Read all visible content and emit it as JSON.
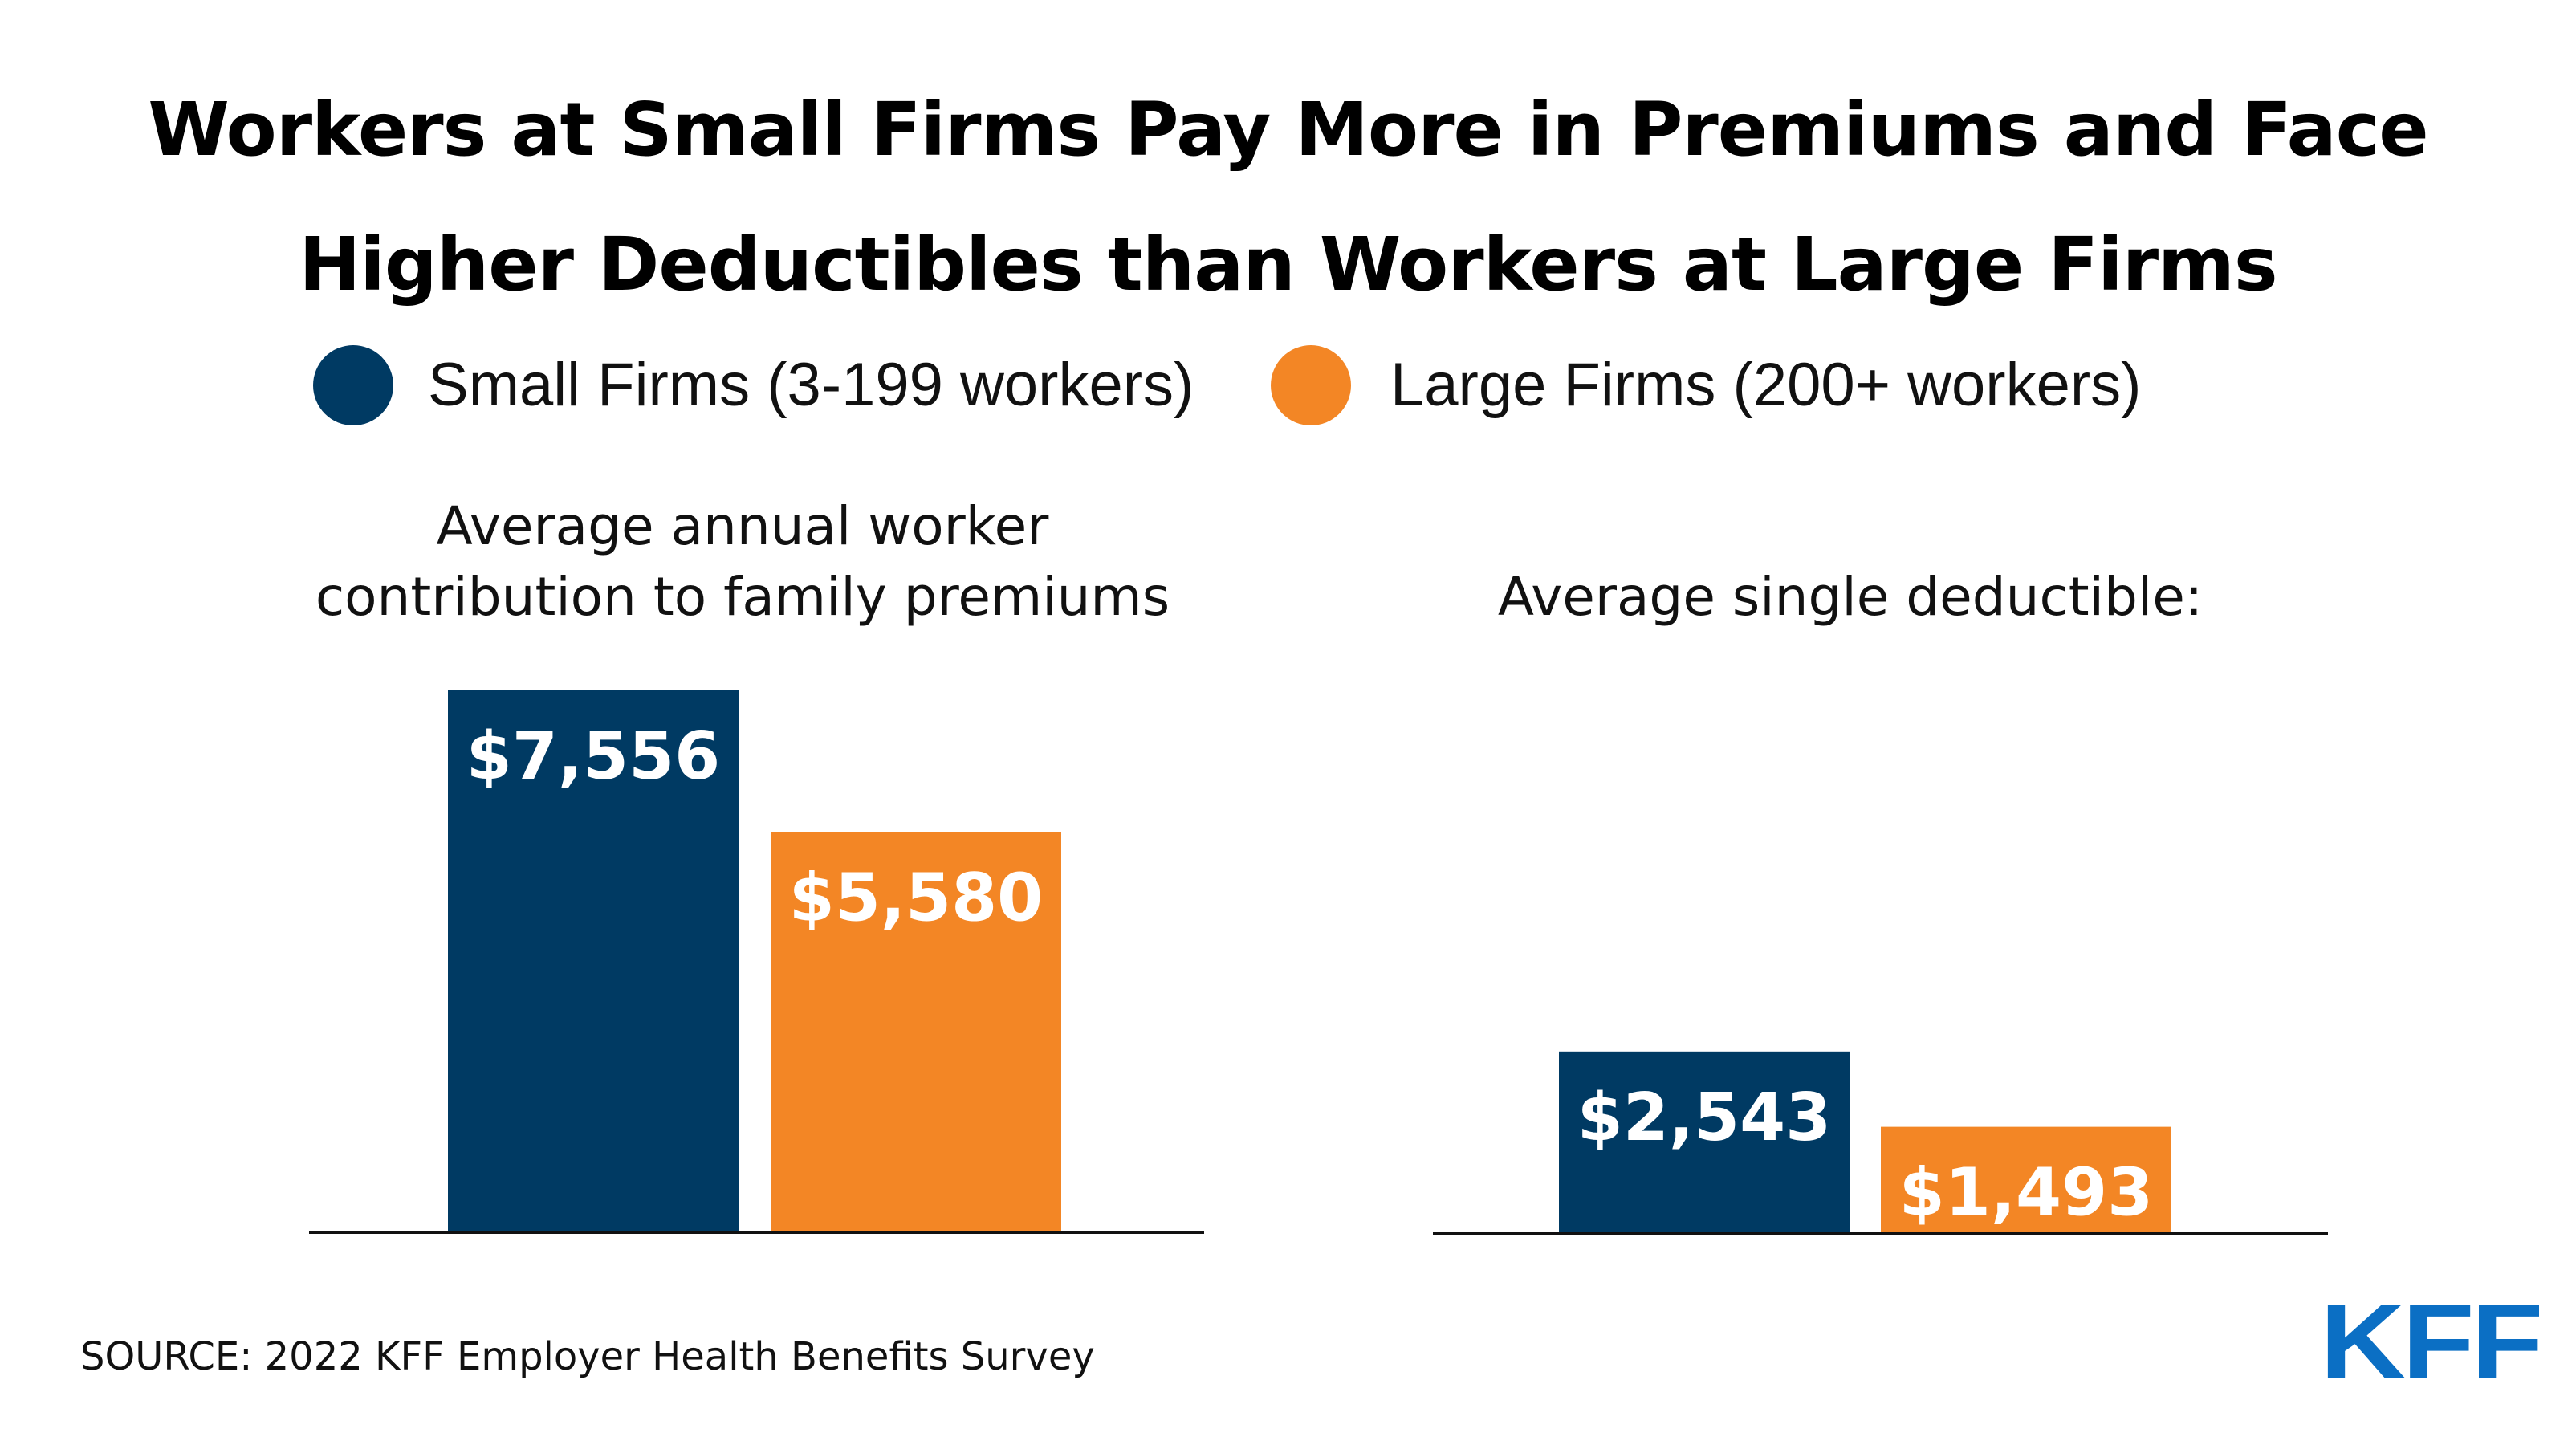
{
  "title": {
    "line1": "Workers at Small Firms Pay More in Premiums and Face",
    "line2": "Higher Deductibles than Workers at Large Firms"
  },
  "legend": [
    {
      "label": "Small Firms (3-199 workers)",
      "color": "#003a63"
    },
    {
      "label": "Large Firms (200+ workers)",
      "color": "#f38625"
    }
  ],
  "chart_data": [
    {
      "type": "bar",
      "title_lines": [
        "Average annual worker",
        "contribution to family premiums"
      ],
      "categories": [
        "Small Firms (3-199 workers)",
        "Large Firms (200+ workers)"
      ],
      "values": [
        7556,
        5580
      ],
      "value_labels": [
        "$7,556",
        "$5,580"
      ],
      "colors": [
        "#003a63",
        "#f38625"
      ],
      "ylim": [
        0,
        7556
      ],
      "grid": false
    },
    {
      "type": "bar",
      "title_lines": [
        "Average single deductible:"
      ],
      "categories": [
        "Small Firms (3-199 workers)",
        "Large Firms (200+ workers)"
      ],
      "values": [
        2543,
        1493
      ],
      "value_labels": [
        "$2,543",
        "$1,493"
      ],
      "colors": [
        "#003a63",
        "#f38625"
      ],
      "ylim": [
        0,
        7556
      ],
      "grid": false
    }
  ],
  "source": "SOURCE: 2022 KFF Employer Health Benefits Survey",
  "logo_text": "KFF",
  "colors": {
    "small": "#003a63",
    "large": "#f38625",
    "logo": "#0b6fc4"
  }
}
